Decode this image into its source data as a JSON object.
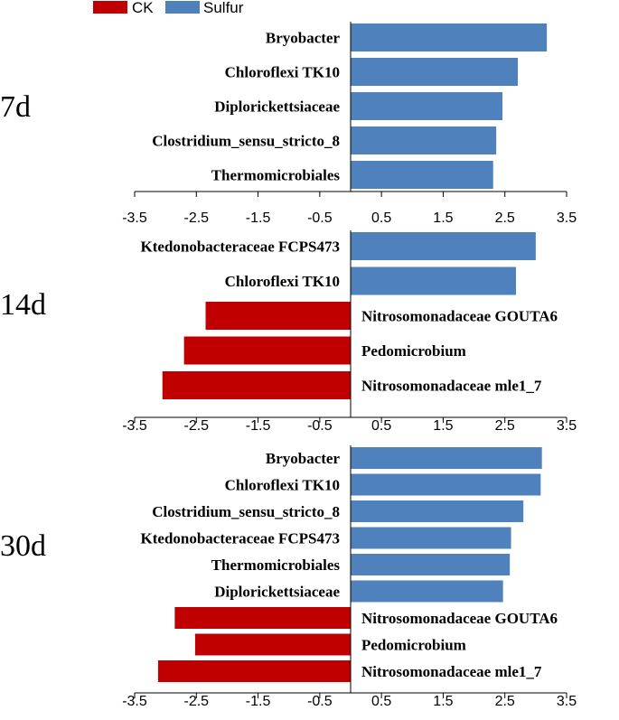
{
  "chart_data": {
    "type": "bar",
    "orientation": "horizontal",
    "legend": {
      "placement": "top-left",
      "entries": [
        {
          "name": "CK",
          "color": "#c00000"
        },
        {
          "name": "Sulfur",
          "color": "#4f81bd"
        }
      ]
    },
    "xlim": [
      -3.5,
      3.5
    ],
    "xticks": [
      "-3.5",
      "-2.5",
      "-1.5",
      "-0.5",
      "0.5",
      "1.5",
      "2.5",
      "3.5"
    ],
    "xtick_values": [
      -3.5,
      -2.5,
      -1.5,
      -0.5,
      0.5,
      1.5,
      2.5,
      3.5
    ],
    "panels": [
      {
        "label": "7d",
        "bars": [
          {
            "name": "Bryobacter",
            "value": 3.18,
            "group": "Sulfur"
          },
          {
            "name": "Chloroflexi TK10",
            "value": 2.71,
            "group": "Sulfur"
          },
          {
            "name": "Diplorickettsiaceae",
            "value": 2.46,
            "group": "Sulfur"
          },
          {
            "name": "Clostridium_sensu_stricto_8",
            "value": 2.36,
            "group": "Sulfur"
          },
          {
            "name": "Thermomicrobiales",
            "value": 2.31,
            "group": "Sulfur"
          }
        ]
      },
      {
        "label": "14d",
        "bars": [
          {
            "name": "Ktedonobacteraceae FCPS473",
            "value": 3.0,
            "group": "Sulfur"
          },
          {
            "name": "Chloroflexi TK10",
            "value": 2.68,
            "group": "Sulfur"
          },
          {
            "name": "Nitrosomonadaceae GOUTA6",
            "value": -2.35,
            "group": "CK"
          },
          {
            "name": "Pedomicrobium",
            "value": -2.7,
            "group": "CK"
          },
          {
            "name": "Nitrosomonadaceae mle1_7",
            "value": -3.05,
            "group": "CK"
          }
        ]
      },
      {
        "label": "30d",
        "bars": [
          {
            "name": "Bryobacter",
            "value": 3.1,
            "group": "Sulfur"
          },
          {
            "name": "Chloroflexi TK10",
            "value": 3.08,
            "group": "Sulfur"
          },
          {
            "name": "Clostridium_sensu_stricto_8",
            "value": 2.8,
            "group": "Sulfur"
          },
          {
            "name": "Ktedonobacteraceae FCPS473",
            "value": 2.6,
            "group": "Sulfur"
          },
          {
            "name": "Thermomicrobiales",
            "value": 2.58,
            "group": "Sulfur"
          },
          {
            "name": "Diplorickettsiaceae",
            "value": 2.47,
            "group": "Sulfur"
          },
          {
            "name": "Nitrosomonadaceae GOUTA6",
            "value": -2.85,
            "group": "CK"
          },
          {
            "name": "Pedomicrobium",
            "value": -2.52,
            "group": "CK"
          },
          {
            "name": "Nitrosomonadaceae mle1_7",
            "value": -3.12,
            "group": "CK"
          }
        ]
      }
    ]
  }
}
